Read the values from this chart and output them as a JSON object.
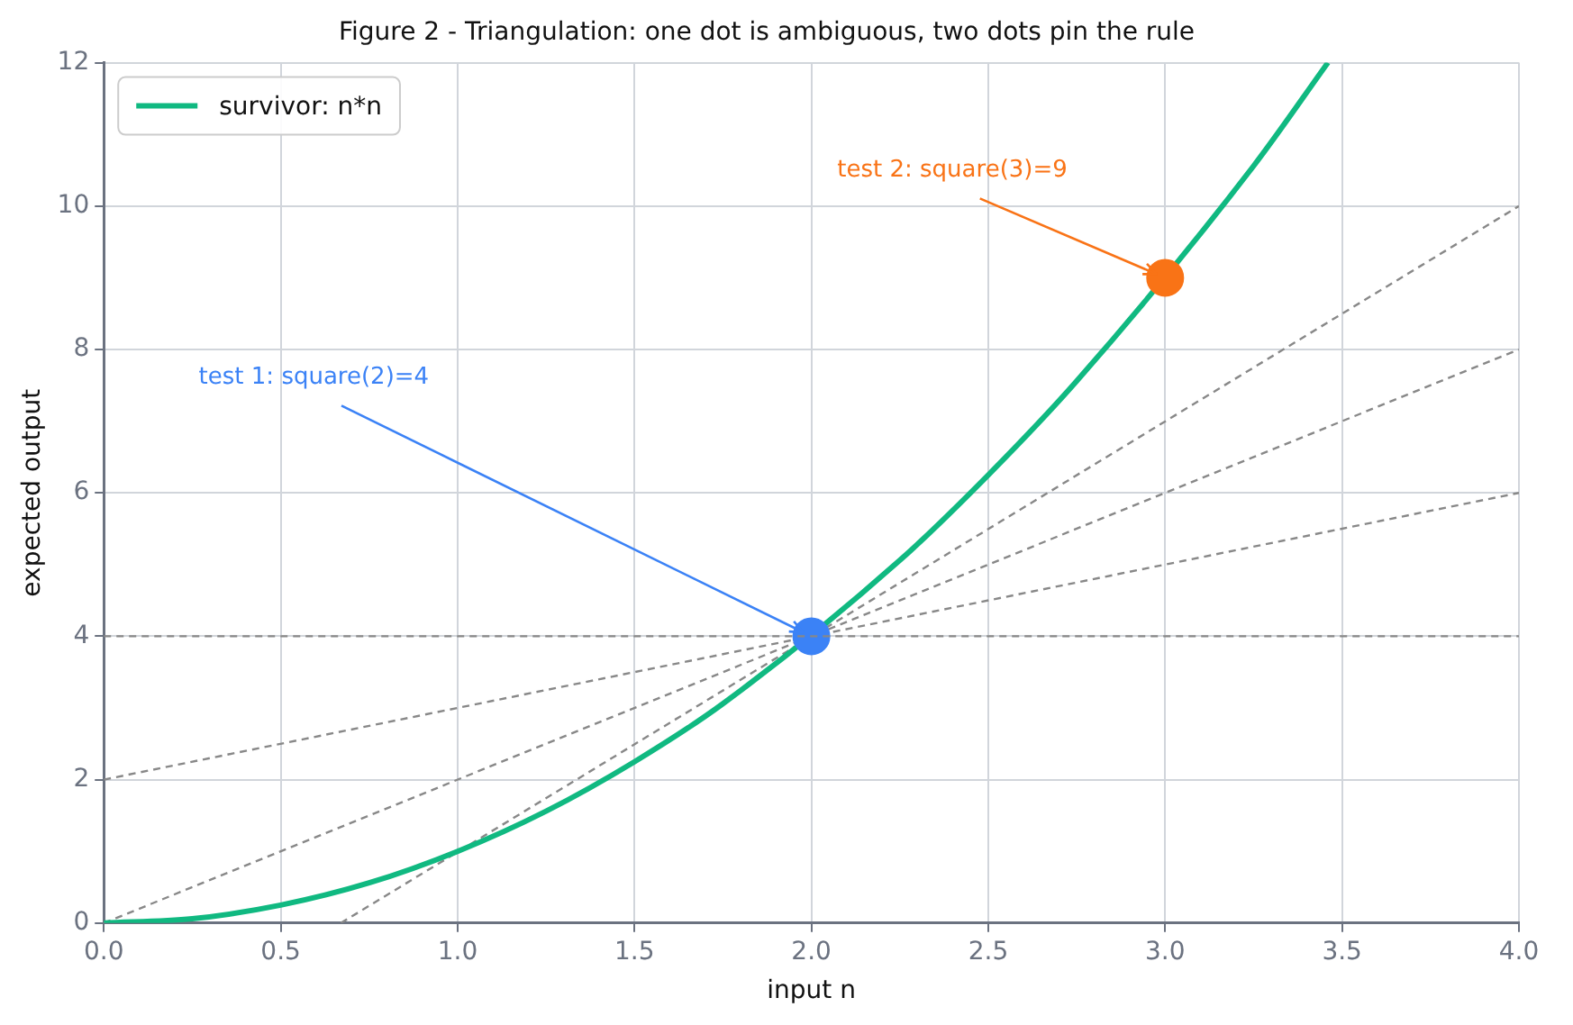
{
  "chart_data": {
    "type": "line",
    "title": "Figure 2 - Triangulation: one dot is ambiguous, two dots pin the rule",
    "xlabel": "input n",
    "ylabel": "expected output",
    "xlim": [
      0,
      4
    ],
    "ylim": [
      0,
      12
    ],
    "xticks": [
      {
        "value": 0,
        "label": "0.0"
      },
      {
        "value": 0.5,
        "label": "0.5"
      },
      {
        "value": 1,
        "label": "1.0"
      },
      {
        "value": 1.5,
        "label": "1.5"
      },
      {
        "value": 2,
        "label": "2.0"
      },
      {
        "value": 2.5,
        "label": "2.5"
      },
      {
        "value": 3,
        "label": "3.0"
      },
      {
        "value": 3.5,
        "label": "3.5"
      },
      {
        "value": 4,
        "label": "4.0"
      }
    ],
    "yticks": [
      0,
      2,
      4,
      6,
      8,
      10,
      12
    ],
    "grid": true,
    "legend": "top left",
    "series": [
      {
        "name": "survivor: n*n",
        "type": "line",
        "color": "#10b981",
        "marker": "none",
        "line_style": "solid",
        "x": [
          0,
          0.25,
          0.5,
          0.75,
          1,
          1.25,
          1.5,
          1.75,
          2.25,
          2.5,
          2.75,
          3.25,
          3.46
        ],
        "values": [
          0,
          0.06,
          0.25,
          0.56,
          1,
          1.56,
          2.25,
          3.06,
          5.06,
          6.25,
          7.56,
          10.56,
          12
        ]
      },
      {
        "type": "line",
        "color": "#888888",
        "marker": "none",
        "line_style": "dashed",
        "x": [
          0,
          4
        ],
        "values": [
          2,
          6
        ]
      },
      {
        "type": "line",
        "color": "#888888",
        "marker": "none",
        "line_style": "dashed",
        "x": [
          0,
          4
        ],
        "values": [
          0,
          8
        ]
      },
      {
        "type": "line",
        "color": "#888888",
        "marker": "none",
        "line_style": "dashed",
        "x": [
          0.67,
          4
        ],
        "values": [
          0,
          10
        ]
      },
      {
        "type": "scatter",
        "color": "#3b82f6",
        "marker": "circle",
        "x": [
          2
        ],
        "values": [
          4
        ]
      },
      {
        "type": "scatter",
        "color": "#f97316",
        "marker": "circle",
        "x": [
          3
        ],
        "values": [
          9
        ]
      }
    ],
    "ref_lines": [
      {
        "axis": "y",
        "value": 4,
        "color": "#888888",
        "line_style": "dashed"
      }
    ],
    "annotations": [
      {
        "text": "test 1: square(2)=4",
        "x": 2,
        "y": 4
      },
      {
        "text": "test 2: square(3)=9",
        "x": 3,
        "y": 9
      }
    ]
  }
}
